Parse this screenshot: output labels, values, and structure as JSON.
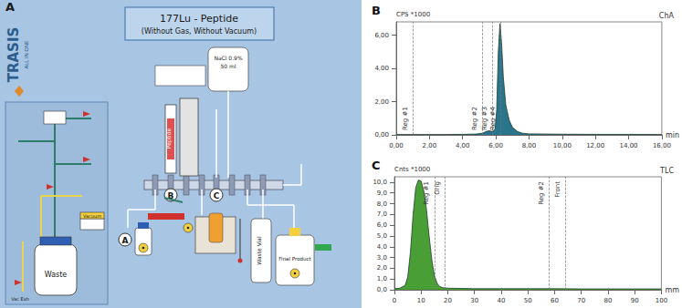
{
  "diagram": {
    "title": "A",
    "header": "177Lu - Peptide",
    "subheader": "(Without Gas, Without Vacuum)",
    "logo": "TRASIS",
    "logo_sub": "ALL IN ONE",
    "markers": [
      "A",
      "B",
      "C"
    ],
    "bag": [
      "NaCl 0.9%",
      "50 ml"
    ],
    "syringe": "Peptide",
    "waste": "Waste",
    "waste_vial": "Waste Vial",
    "final_product": "Final Product",
    "vacuum": "Vacuum",
    "vac_exh": "Vac Exh"
  },
  "chart_data": [
    {
      "type": "area",
      "title": "B",
      "subtitle": "ChA",
      "xlabel": "min",
      "ylabel": "CPS *1000",
      "color": "#1c6e86",
      "grid": false,
      "x": [
        0,
        1,
        2,
        3,
        4,
        4.8,
        5.2,
        5.4,
        5.6,
        5.8,
        5.95,
        6.05,
        6.15,
        6.25,
        6.35,
        6.45,
        6.6,
        6.8,
        7.0,
        7.3,
        7.6,
        8,
        10,
        12,
        14,
        16
      ],
      "values": [
        0.02,
        0.02,
        0.02,
        0.02,
        0.03,
        0.05,
        0.1,
        0.2,
        0.25,
        0.2,
        0.3,
        1.5,
        5.0,
        6.7,
        5.5,
        3.5,
        1.8,
        0.9,
        0.45,
        0.2,
        0.1,
        0.06,
        0.04,
        0.03,
        0.03,
        0.02
      ],
      "xlim": [
        0,
        16
      ],
      "xticks": [
        {
          "value": 0,
          "label": "0,00"
        },
        {
          "value": 2,
          "label": "2,00"
        },
        {
          "value": 4,
          "label": "4,00"
        },
        {
          "value": 6,
          "label": "6,00"
        },
        {
          "value": 8,
          "label": "8,00"
        },
        {
          "value": 10,
          "label": "10,00"
        },
        {
          "value": 12,
          "label": "12,00"
        },
        {
          "value": 14,
          "label": "14,00"
        },
        {
          "value": 16,
          "label": "16,00"
        }
      ],
      "ylim": [
        0,
        6.8
      ],
      "yticks": [
        {
          "value": 0,
          "label": "0,00"
        },
        {
          "value": 2,
          "label": "2,00"
        },
        {
          "value": 4,
          "label": "4,00"
        },
        {
          "value": 6,
          "label": "6,00"
        }
      ],
      "annotations": [
        {
          "x": 1.0,
          "label": "Reg #1"
        },
        {
          "x": 5.2,
          "label": "Reg #2"
        },
        {
          "x": 5.8,
          "label": "Reg #3"
        },
        {
          "x": 6.3,
          "label": "Reg #4"
        }
      ]
    },
    {
      "type": "area",
      "title": "C",
      "subtitle": "TLC",
      "xlabel": "mm",
      "ylabel": "Cnts *1000",
      "color": "#3f9a2a",
      "grid": false,
      "x": [
        0,
        2,
        4,
        5,
        6,
        7,
        8,
        9,
        10,
        11,
        12,
        13,
        14,
        15,
        16,
        17,
        18,
        20,
        30,
        40,
        50,
        60,
        70,
        80,
        90,
        100
      ],
      "values": [
        0.1,
        0.15,
        0.4,
        1.2,
        3.5,
        7.0,
        9.5,
        10.2,
        10.1,
        9.2,
        7.5,
        5.0,
        2.8,
        1.3,
        0.6,
        0.3,
        0.2,
        0.15,
        0.1,
        0.1,
        0.1,
        0.1,
        0.08,
        0.08,
        0.08,
        0.08
      ],
      "xlim": [
        0,
        100
      ],
      "xticks": [
        0,
        10,
        20,
        30,
        40,
        50,
        60,
        70,
        80,
        90,
        100
      ],
      "ylim": [
        0,
        10.5
      ],
      "yticks": [
        {
          "value": 0,
          "label": "0,0"
        },
        {
          "value": 1,
          "label": "1,0"
        },
        {
          "value": 2,
          "label": "2,0"
        },
        {
          "value": 3,
          "label": "3,0"
        },
        {
          "value": 4,
          "label": "4,0"
        },
        {
          "value": 5,
          "label": "5,0"
        },
        {
          "value": 6,
          "label": "6,0"
        },
        {
          "value": 7,
          "label": "7,0"
        },
        {
          "value": 8,
          "label": "8,0"
        },
        {
          "value": 9,
          "label": "9,0"
        },
        {
          "value": 10,
          "label": "10,0"
        }
      ],
      "annotations": [
        {
          "x": 15,
          "label": "Reg #1"
        },
        {
          "x": 19,
          "label": "Orig"
        },
        {
          "x": 58,
          "label": "Reg #2"
        },
        {
          "x": 64,
          "label": "Front"
        }
      ]
    }
  ]
}
